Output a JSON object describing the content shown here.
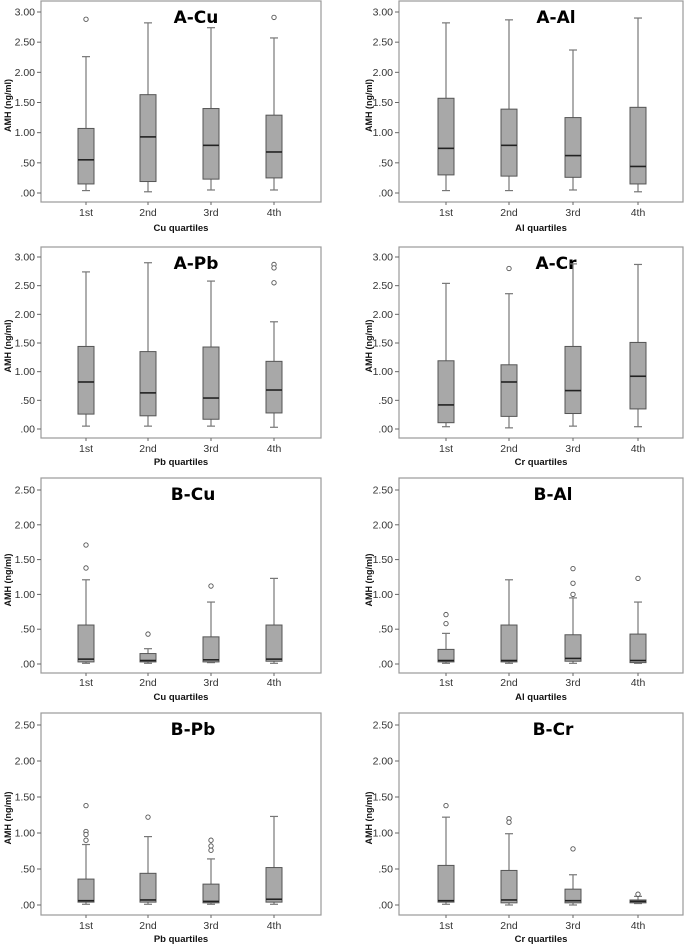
{
  "colors": {
    "box_fill": "#a8a8a8",
    "box_stroke": "#555555",
    "median": "#222222",
    "whisker": "#777777",
    "frame": "#9a9a9a"
  },
  "chart_data": [
    {
      "type": "box",
      "title": "A-Cu",
      "xlabel": "Cu quartiles",
      "ylabel": "AMH (ng/ml)",
      "ylim": [
        0,
        3
      ],
      "yticks": [
        ".00",
        ".50",
        "1.00",
        "1.50",
        "2.00",
        "2.50",
        "3.00"
      ],
      "categories": [
        "1st",
        "2nd",
        "3rd",
        "4th"
      ],
      "boxes": [
        {
          "min": 0.04,
          "q1": 0.15,
          "median": 0.55,
          "q3": 1.07,
          "max": 2.26,
          "outliers": [
            2.88
          ]
        },
        {
          "min": 0.02,
          "q1": 0.19,
          "median": 0.93,
          "q3": 1.63,
          "max": 2.82,
          "outliers": []
        },
        {
          "min": 0.05,
          "q1": 0.23,
          "median": 0.79,
          "q3": 1.4,
          "max": 2.74,
          "outliers": []
        },
        {
          "min": 0.05,
          "q1": 0.25,
          "median": 0.68,
          "q3": 1.29,
          "max": 2.57,
          "outliers": [
            2.91
          ]
        }
      ]
    },
    {
      "type": "box",
      "title": "A-Al",
      "xlabel": "Al  quartiles",
      "ylabel": "AMH (ng/ml)",
      "ylim": [
        0,
        3
      ],
      "yticks": [
        ".00",
        ".50",
        "1.00",
        "1.50",
        "2.00",
        "2.50",
        "3.00"
      ],
      "categories": [
        "1st",
        "2nd",
        "3rd",
        "4th"
      ],
      "boxes": [
        {
          "min": 0.04,
          "q1": 0.3,
          "median": 0.74,
          "q3": 1.57,
          "max": 2.82,
          "outliers": []
        },
        {
          "min": 0.04,
          "q1": 0.28,
          "median": 0.79,
          "q3": 1.39,
          "max": 2.87,
          "outliers": []
        },
        {
          "min": 0.05,
          "q1": 0.26,
          "median": 0.62,
          "q3": 1.25,
          "max": 2.37,
          "outliers": []
        },
        {
          "min": 0.02,
          "q1": 0.15,
          "median": 0.44,
          "q3": 1.42,
          "max": 2.9,
          "outliers": []
        }
      ]
    },
    {
      "type": "box",
      "title": "A-Pb",
      "xlabel": "Pb  quartiles",
      "ylabel": "AMH (ng/ml)",
      "ylim": [
        0,
        3
      ],
      "yticks": [
        ".00",
        ".50",
        "1.00",
        "1.50",
        "2.00",
        "2.50",
        "3.00"
      ],
      "categories": [
        "1st",
        "2nd",
        "3rd",
        "4th"
      ],
      "boxes": [
        {
          "min": 0.05,
          "q1": 0.26,
          "median": 0.82,
          "q3": 1.44,
          "max": 2.74,
          "outliers": []
        },
        {
          "min": 0.05,
          "q1": 0.23,
          "median": 0.63,
          "q3": 1.35,
          "max": 2.9,
          "outliers": []
        },
        {
          "min": 0.05,
          "q1": 0.17,
          "median": 0.54,
          "q3": 1.43,
          "max": 2.58,
          "outliers": []
        },
        {
          "min": 0.03,
          "q1": 0.28,
          "median": 0.68,
          "q3": 1.18,
          "max": 1.87,
          "outliers": [
            2.87,
            2.81,
            2.55
          ]
        }
      ]
    },
    {
      "type": "box",
      "title": "A-Cr",
      "xlabel": "Cr  quartiles",
      "ylabel": "AMH (ng/ml)",
      "ylim": [
        0,
        3
      ],
      "yticks": [
        ".00",
        ".50",
        "1.00",
        "1.50",
        "2.00",
        "2.50",
        "3.00"
      ],
      "categories": [
        "1st",
        "2nd",
        "3rd",
        "4th"
      ],
      "boxes": [
        {
          "min": 0.04,
          "q1": 0.11,
          "median": 0.42,
          "q3": 1.19,
          "max": 2.54,
          "outliers": []
        },
        {
          "min": 0.02,
          "q1": 0.22,
          "median": 0.82,
          "q3": 1.12,
          "max": 2.36,
          "outliers": [
            2.8
          ]
        },
        {
          "min": 0.05,
          "q1": 0.27,
          "median": 0.67,
          "q3": 1.44,
          "max": 2.88,
          "outliers": []
        },
        {
          "min": 0.04,
          "q1": 0.35,
          "median": 0.92,
          "q3": 1.51,
          "max": 2.87,
          "outliers": []
        }
      ]
    },
    {
      "type": "box",
      "title": "B-Cu",
      "xlabel": "Cu quartiles",
      "ylabel": "AMH (ng/ml)",
      "ylim": [
        0,
        2.5
      ],
      "yticks": [
        ".00",
        ".50",
        "1.00",
        "1.50",
        "2.00",
        "2.50"
      ],
      "categories": [
        "1st",
        "2nd",
        "3rd",
        "4th"
      ],
      "boxes": [
        {
          "min": 0.01,
          "q1": 0.03,
          "median": 0.07,
          "q3": 0.56,
          "max": 1.21,
          "outliers": [
            1.71,
            1.38
          ]
        },
        {
          "min": 0.01,
          "q1": 0.03,
          "median": 0.05,
          "q3": 0.15,
          "max": 0.22,
          "outliers": [
            0.43
          ]
        },
        {
          "min": 0.02,
          "q1": 0.03,
          "median": 0.06,
          "q3": 0.39,
          "max": 0.89,
          "outliers": [
            1.12
          ]
        },
        {
          "min": 0.01,
          "q1": 0.04,
          "median": 0.07,
          "q3": 0.56,
          "max": 1.23,
          "outliers": []
        }
      ]
    },
    {
      "type": "box",
      "title": "B-Al",
      "xlabel": "Al  quartiles",
      "ylabel": "AMH (ng/ml)",
      "ylim": [
        0,
        2.5
      ],
      "yticks": [
        ".00",
        ".50",
        "1.00",
        "1.50",
        "2.00",
        "2.50"
      ],
      "categories": [
        "1st",
        "2nd",
        "3rd",
        "4th"
      ],
      "boxes": [
        {
          "min": 0.01,
          "q1": 0.03,
          "median": 0.05,
          "q3": 0.21,
          "max": 0.44,
          "outliers": [
            0.71,
            0.58
          ]
        },
        {
          "min": 0.01,
          "q1": 0.03,
          "median": 0.05,
          "q3": 0.56,
          "max": 1.21,
          "outliers": []
        },
        {
          "min": 0.01,
          "q1": 0.04,
          "median": 0.08,
          "q3": 0.42,
          "max": 0.95,
          "outliers": [
            1.37,
            1.16,
            1.0
          ]
        },
        {
          "min": 0.01,
          "q1": 0.02,
          "median": 0.05,
          "q3": 0.43,
          "max": 0.89,
          "outliers": [
            1.23
          ]
        }
      ]
    },
    {
      "type": "box",
      "title": "B-Pb",
      "xlabel": "Pb  quartiles",
      "ylabel": "AMH (ng/ml)",
      "ylim": [
        0,
        2.5
      ],
      "yticks": [
        ".00",
        ".50",
        "1.00",
        "1.50",
        "2.00",
        "2.50"
      ],
      "categories": [
        "1st",
        "2nd",
        "3rd",
        "4th"
      ],
      "boxes": [
        {
          "min": 0.01,
          "q1": 0.04,
          "median": 0.06,
          "q3": 0.36,
          "max": 0.84,
          "outliers": [
            1.38,
            1.02,
            0.98,
            0.9
          ]
        },
        {
          "min": 0.01,
          "q1": 0.04,
          "median": 0.07,
          "q3": 0.44,
          "max": 0.95,
          "outliers": [
            1.22
          ]
        },
        {
          "min": 0.01,
          "q1": 0.03,
          "median": 0.05,
          "q3": 0.29,
          "max": 0.64,
          "outliers": [
            0.9,
            0.82,
            0.76
          ]
        },
        {
          "min": 0.01,
          "q1": 0.04,
          "median": 0.08,
          "q3": 0.52,
          "max": 1.23,
          "outliers": []
        }
      ]
    },
    {
      "type": "box",
      "title": "B-Cr",
      "xlabel": "Cr  quartiles",
      "ylabel": "AMH (ng/ml)",
      "ylim": [
        0,
        2.5
      ],
      "yticks": [
        ".00",
        ".50",
        "1.00",
        "1.50",
        "2.00",
        "2.50"
      ],
      "categories": [
        "1st",
        "2nd",
        "3rd",
        "4th"
      ],
      "boxes": [
        {
          "min": 0.01,
          "q1": 0.04,
          "median": 0.06,
          "q3": 0.55,
          "max": 1.22,
          "outliers": [
            1.38
          ]
        },
        {
          "min": 0.0,
          "q1": 0.03,
          "median": 0.07,
          "q3": 0.48,
          "max": 0.99,
          "outliers": [
            1.2,
            1.15
          ]
        },
        {
          "min": 0.0,
          "q1": 0.03,
          "median": 0.06,
          "q3": 0.22,
          "max": 0.42,
          "outliers": [
            0.78
          ]
        },
        {
          "min": 0.02,
          "q1": 0.03,
          "median": 0.05,
          "q3": 0.07,
          "max": 0.12,
          "outliers": [
            0.15
          ]
        }
      ]
    }
  ]
}
